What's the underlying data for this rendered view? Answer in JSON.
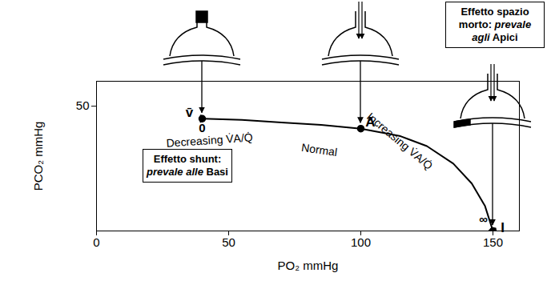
{
  "chart_data": {
    "type": "line",
    "x_label": "PO₂ mmHg",
    "y_label": "PCO₂ mmHg",
    "x": [
      40,
      55,
      70,
      85,
      100,
      115,
      125,
      135,
      142,
      147,
      150
    ],
    "values": [
      45,
      44.5,
      43.5,
      42.5,
      41,
      38,
      34,
      27,
      19,
      10,
      0
    ],
    "color": "#000000",
    "xlim": [
      0,
      160
    ],
    "ylim": [
      0,
      60
    ],
    "xticks": [
      0,
      50,
      100,
      150
    ],
    "yticks": [
      50
    ],
    "points": [
      {
        "name": "v̄",
        "ratio": "0",
        "x": 40,
        "y": 45
      },
      {
        "name": "A",
        "x": 100,
        "y": 41
      },
      {
        "name": "I",
        "ratio": "∞",
        "x": 150,
        "y": 0
      }
    ],
    "annotations": [
      "Decreasing V̇A/Q̇",
      "Normal",
      "Increasing V̇A/Q̇"
    ],
    "boxes": [
      {
        "label": "Effetto shunt:",
        "emphasis": "prevale alle",
        "place": "Basi"
      },
      {
        "label": "Effetto spazio morto:",
        "emphasis": "prevale agli",
        "place": "Apici"
      }
    ]
  }
}
